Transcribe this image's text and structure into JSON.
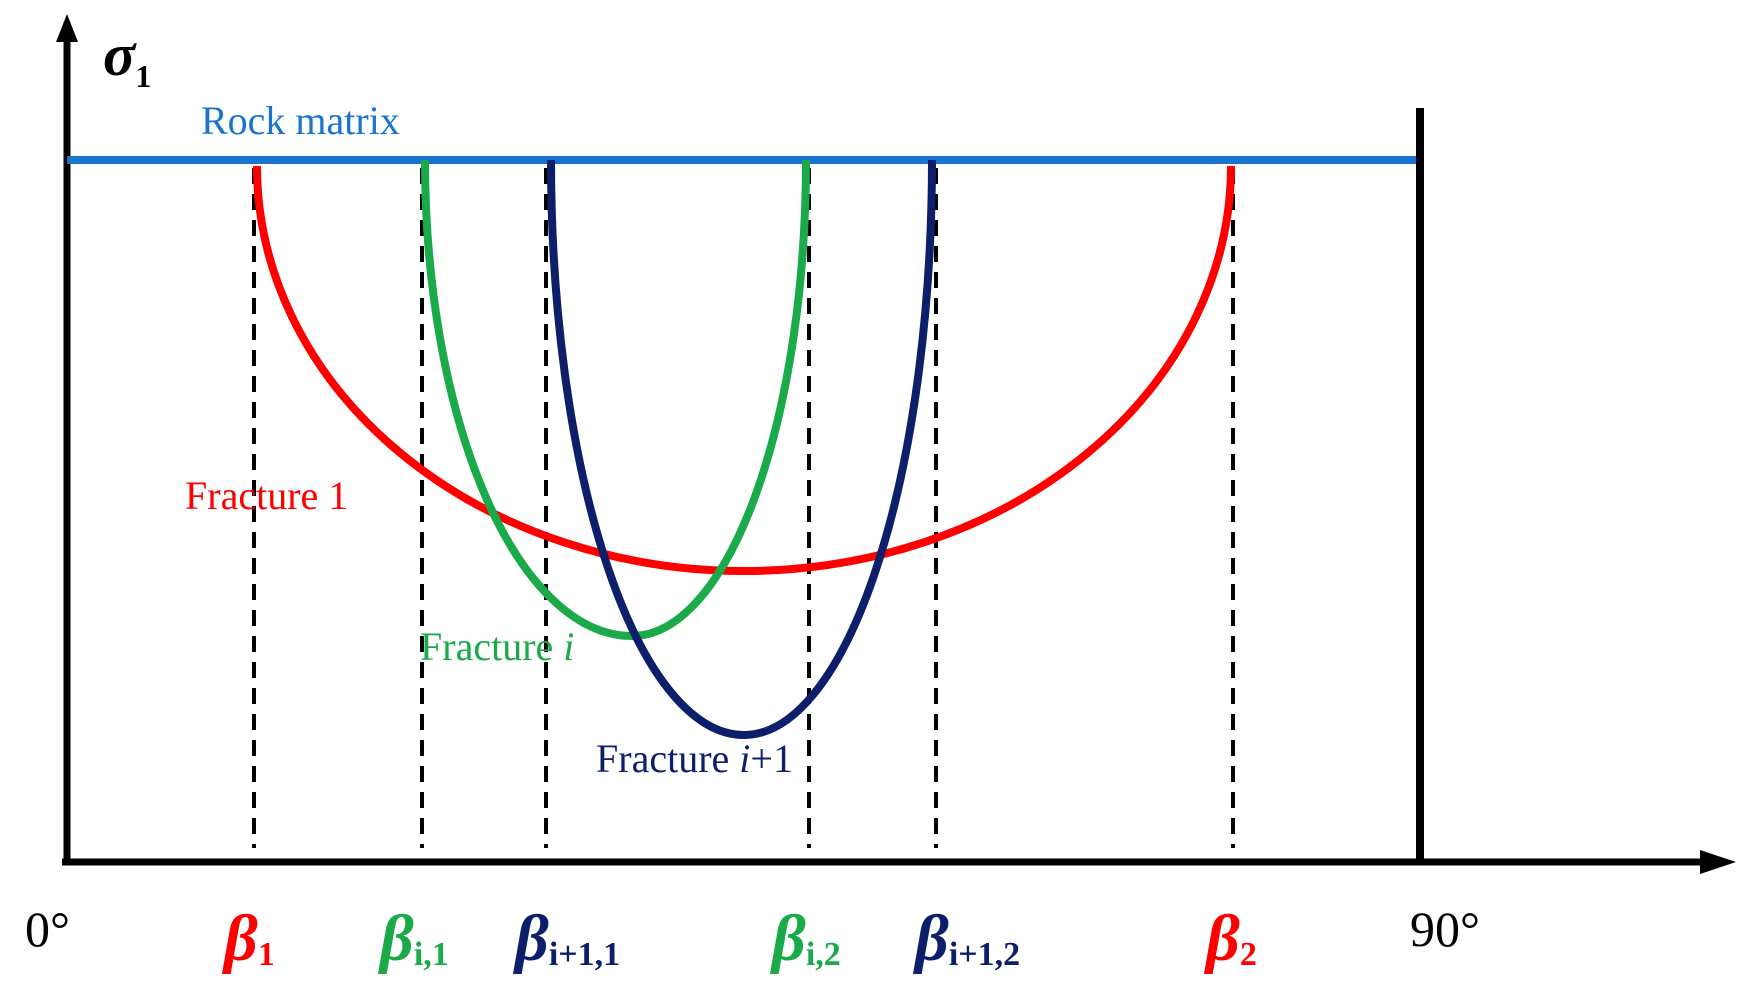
{
  "y_axis_label": {
    "symbol": "σ",
    "subscript": "1"
  },
  "x_axis_labels": {
    "start": "0°",
    "end": "90°"
  },
  "curves": [
    {
      "label": [
        "Rock matrix"
      ]
    },
    {
      "label": [
        "Fracture 1"
      ]
    },
    {
      "label": [
        "Fracture ",
        "i"
      ]
    },
    {
      "label": [
        "Fracture ",
        "i",
        "+1"
      ]
    }
  ],
  "angles": [
    {
      "symbol": "β",
      "subscript": "1"
    },
    {
      "symbol": "β",
      "subscript": "i,1"
    },
    {
      "symbol": "β",
      "subscript": "i+1,1"
    },
    {
      "symbol": "β",
      "subscript": "i,2"
    },
    {
      "symbol": "β",
      "subscript": "i+1,2"
    },
    {
      "symbol": "β",
      "subscript": "2"
    }
  ]
}
